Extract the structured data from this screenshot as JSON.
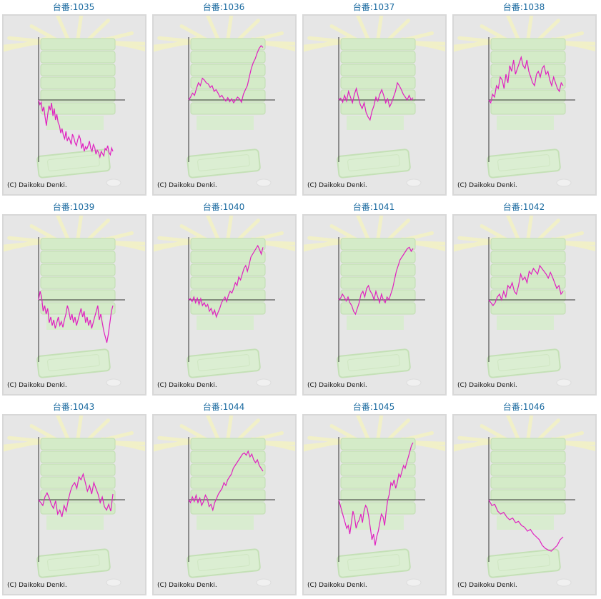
{
  "colors": {
    "title": "#1a6aa0",
    "line": "#e020c0",
    "axis": "#333333",
    "panel_bg": "#e6e6e6"
  },
  "copyright": "(C) Daikoku Denki.",
  "machines": [
    {
      "label": "台番:1035",
      "values": [
        0,
        -8,
        -4,
        -20,
        -12,
        -30,
        -45,
        -25,
        -10,
        -18,
        -5,
        -28,
        -15,
        -35,
        -25,
        -40,
        -45,
        -58,
        -50,
        -62,
        -68,
        -55,
        -72,
        -65,
        -70,
        -78,
        -60,
        -66,
        -75,
        -80,
        -70,
        -62,
        -68,
        -85,
        -76,
        -90,
        -82,
        -86,
        -80,
        -72,
        -85,
        -90,
        -78,
        -83,
        -95,
        -88,
        -92,
        -100,
        -90,
        -94,
        -98,
        -85,
        -88,
        -80,
        -92,
        -96,
        -84,
        -90
      ]
    },
    {
      "label": "台番:1036",
      "values": [
        0,
        5,
        12,
        8,
        20,
        30,
        25,
        38,
        35,
        30,
        28,
        22,
        25,
        15,
        18,
        12,
        5,
        8,
        2,
        -2,
        4,
        -3,
        2,
        -5,
        0,
        5,
        2,
        -4,
        10,
        18,
        25,
        40,
        55,
        65,
        72,
        82,
        90,
        95,
        92
      ]
    },
    {
      "label": "台番:1037",
      "values": [
        0,
        3,
        -4,
        8,
        -2,
        15,
        5,
        -5,
        10,
        20,
        5,
        -8,
        -15,
        -5,
        -22,
        -30,
        -35,
        -20,
        -10,
        5,
        -2,
        10,
        18,
        8,
        -5,
        2,
        -12,
        -5,
        5,
        15,
        30,
        25,
        18,
        10,
        5,
        0,
        8,
        0,
        4
      ]
    },
    {
      "label": "台番:1038",
      "values": [
        0,
        -5,
        10,
        5,
        25,
        20,
        40,
        35,
        20,
        45,
        30,
        60,
        50,
        70,
        45,
        55,
        65,
        75,
        60,
        55,
        70,
        50,
        40,
        30,
        25,
        45,
        50,
        40,
        55,
        60,
        45,
        50,
        35,
        25,
        40,
        30,
        20,
        15,
        30,
        25
      ]
    },
    {
      "label": "台番:1039",
      "values": [
        0,
        15,
        5,
        -20,
        -10,
        -25,
        -15,
        -40,
        -30,
        -45,
        -35,
        -50,
        -40,
        -30,
        -45,
        -38,
        -48,
        -35,
        -25,
        -10,
        -20,
        -35,
        -25,
        -40,
        -30,
        -45,
        -35,
        -25,
        -15,
        -30,
        -20,
        -40,
        -30,
        -45,
        -35,
        -50,
        -40,
        -30,
        -20,
        -10,
        -35,
        -25,
        -40,
        -55,
        -65,
        -75,
        -60,
        -40,
        -20,
        -10
      ]
    },
    {
      "label": "台番:1040",
      "values": [
        0,
        2,
        -3,
        5,
        -5,
        3,
        -8,
        2,
        -10,
        -5,
        -12,
        -8,
        -20,
        -15,
        -25,
        -18,
        -30,
        -22,
        -15,
        -5,
        0,
        5,
        -3,
        8,
        15,
        12,
        20,
        30,
        25,
        40,
        35,
        45,
        55,
        60,
        50,
        62,
        75,
        80,
        85,
        90,
        95,
        88,
        80,
        92
      ]
    },
    {
      "label": "台番:1041",
      "values": [
        0,
        3,
        10,
        5,
        -2,
        5,
        -5,
        -10,
        -20,
        -25,
        -15,
        -5,
        10,
        15,
        5,
        20,
        25,
        15,
        10,
        0,
        15,
        5,
        -5,
        10,
        0,
        -5,
        5,
        0,
        10,
        20,
        35,
        50,
        60,
        70,
        75,
        80,
        85,
        90,
        92,
        85,
        90
      ]
    },
    {
      "label": "台番:1042",
      "values": [
        0,
        -5,
        -10,
        -5,
        5,
        10,
        0,
        15,
        5,
        25,
        20,
        30,
        15,
        10,
        25,
        45,
        35,
        40,
        30,
        50,
        45,
        55,
        50,
        45,
        60,
        55,
        50,
        45,
        38,
        48,
        40,
        30,
        20,
        25,
        10,
        15
      ]
    },
    {
      "label": "台番:1043",
      "values": [
        0,
        -5,
        -10,
        5,
        12,
        3,
        -8,
        -15,
        -2,
        -25,
        -18,
        -30,
        -10,
        -20,
        0,
        15,
        25,
        30,
        20,
        40,
        35,
        45,
        30,
        15,
        25,
        10,
        30,
        20,
        10,
        -5,
        5,
        -12,
        -18,
        -8,
        -20,
        10
      ]
    },
    {
      "label": "台番:1044",
      "values": [
        0,
        -5,
        5,
        -3,
        8,
        -5,
        3,
        -10,
        -3,
        8,
        2,
        -12,
        -8,
        -18,
        -5,
        2,
        10,
        15,
        20,
        30,
        25,
        35,
        40,
        45,
        55,
        60,
        65,
        70,
        75,
        80,
        82,
        78,
        85,
        75,
        80,
        70,
        65,
        70,
        60,
        55,
        50
      ]
    },
    {
      "label": "台番:1045",
      "values": [
        0,
        -10,
        -20,
        -30,
        -40,
        -50,
        -45,
        -60,
        -40,
        -20,
        -30,
        -50,
        -40,
        -35,
        -25,
        -40,
        -20,
        -10,
        -15,
        -30,
        -50,
        -70,
        -60,
        -80,
        -65,
        -55,
        -40,
        -25,
        -30,
        -45,
        -20,
        0,
        10,
        30,
        25,
        35,
        20,
        30,
        45,
        40,
        50,
        60,
        55,
        65,
        75,
        85,
        95,
        100
      ]
    },
    {
      "label": "台番:1046",
      "values": [
        0,
        -10,
        -8,
        -20,
        -25,
        -22,
        -30,
        -35,
        -32,
        -40,
        -38,
        -45,
        -48,
        -55,
        -52,
        -60,
        -65,
        -70,
        -80,
        -85,
        -88,
        -90,
        -85,
        -80,
        -70,
        -65
      ]
    }
  ]
}
